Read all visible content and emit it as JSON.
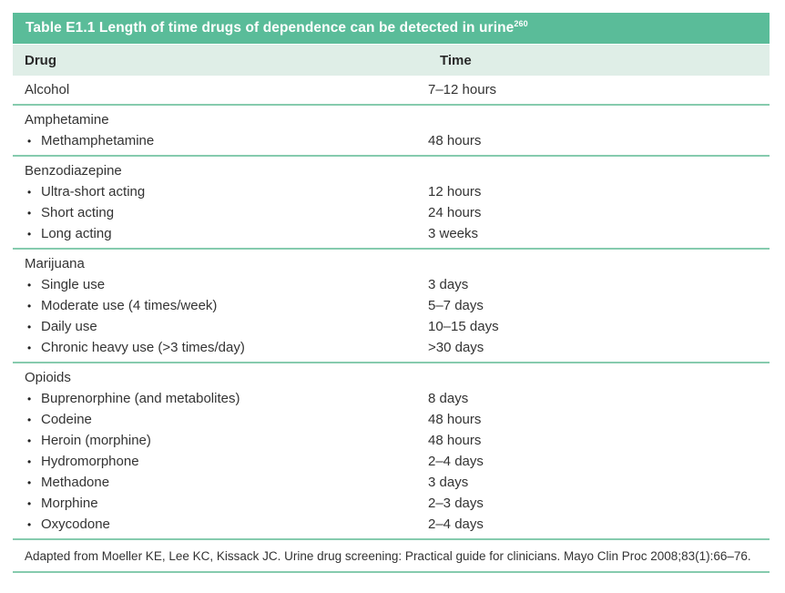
{
  "colors": {
    "title_bar_bg": "#5ABC99",
    "header_row_bg": "#DFEEE7",
    "divider": "#86CBAE",
    "title_text": "#FFFFFF",
    "body_text": "#333333"
  },
  "table": {
    "title": "Table E1.1 Length of time drugs of dependence can be detected in urine",
    "title_sup": "260",
    "columns": [
      "Drug",
      "Time"
    ],
    "bullet_glyph": "•",
    "sections": [
      {
        "group": null,
        "rows": [
          {
            "drug": "Alcohol",
            "bullet": false,
            "time": "7–12 hours"
          }
        ]
      },
      {
        "group": "Amphetamine",
        "rows": [
          {
            "drug": "Methamphetamine",
            "bullet": true,
            "time": "48 hours"
          }
        ]
      },
      {
        "group": "Benzodiazepine",
        "rows": [
          {
            "drug": "Ultra-short acting",
            "bullet": true,
            "time": "12 hours"
          },
          {
            "drug": "Short acting",
            "bullet": true,
            "time": "24 hours"
          },
          {
            "drug": "Long acting",
            "bullet": true,
            "time": "3 weeks"
          }
        ]
      },
      {
        "group": "Marijuana",
        "rows": [
          {
            "drug": "Single use",
            "bullet": true,
            "time": "3 days"
          },
          {
            "drug": "Moderate use (4 times/week)",
            "bullet": true,
            "time": "5–7 days"
          },
          {
            "drug": "Daily use",
            "bullet": true,
            "time": "10–15 days"
          },
          {
            "drug": "Chronic heavy use (>3 times/day)",
            "bullet": true,
            "time": ">30 days"
          }
        ]
      },
      {
        "group": "Opioids",
        "rows": [
          {
            "drug": "Buprenorphine (and metabolites)",
            "bullet": true,
            "time": "8 days"
          },
          {
            "drug": "Codeine",
            "bullet": true,
            "time": "48 hours"
          },
          {
            "drug": "Heroin (morphine)",
            "bullet": true,
            "time": "48 hours"
          },
          {
            "drug": "Hydromorphone",
            "bullet": true,
            "time": "2–4 days"
          },
          {
            "drug": "Methadone",
            "bullet": true,
            "time": "3 days"
          },
          {
            "drug": "Morphine",
            "bullet": true,
            "time": "2–3 days"
          },
          {
            "drug": "Oxycodone",
            "bullet": true,
            "time": "2–4 days"
          }
        ]
      }
    ],
    "footnote": "Adapted from Moeller KE, Lee KC, Kissack JC. Urine drug screening: Practical guide for clinicians. Mayo Clin Proc 2008;83(1):66–76."
  }
}
